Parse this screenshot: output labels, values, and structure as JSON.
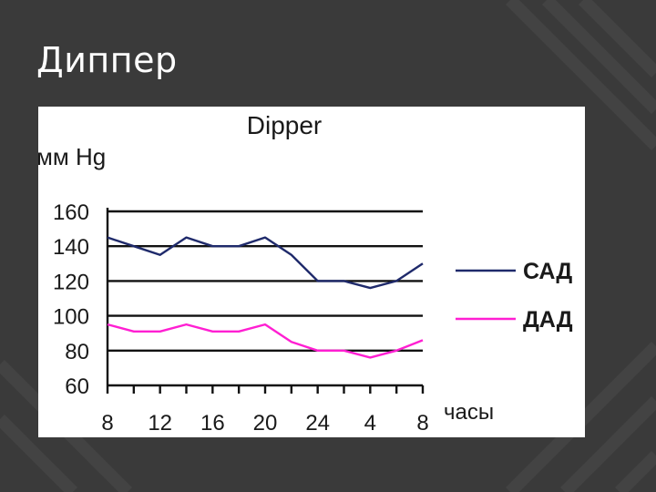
{
  "slide": {
    "title": "Диппер"
  },
  "chart_data": {
    "type": "line",
    "title": "Dipper",
    "ylabel": "мм Hg",
    "xlabel": "часы",
    "categories": [
      "8",
      "",
      "12",
      "",
      "16",
      "",
      "20",
      "",
      "24",
      "",
      "4",
      "",
      "8"
    ],
    "x_tick_labels": [
      "8",
      "12",
      "16",
      "20",
      "24",
      "4",
      "8"
    ],
    "y_ticks": [
      60,
      80,
      100,
      120,
      140,
      160
    ],
    "ylim": [
      60,
      160
    ],
    "grid": true,
    "legend_position": "right",
    "series": [
      {
        "name": "САД",
        "color": "#1f2a6b",
        "values": [
          145,
          140,
          135,
          145,
          140,
          140,
          145,
          135,
          120,
          120,
          116,
          120,
          130
        ]
      },
      {
        "name": "ДАД",
        "color": "#ff1fd2",
        "values": [
          95,
          91,
          91,
          95,
          91,
          91,
          95,
          85,
          80,
          80,
          76,
          80,
          86
        ]
      }
    ]
  }
}
